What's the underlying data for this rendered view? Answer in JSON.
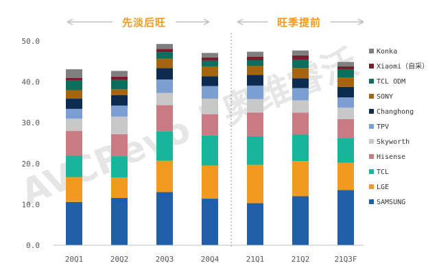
{
  "chart_data": {
    "type": "bar",
    "stacked": true,
    "categories": [
      "20Q1",
      "20Q2",
      "20Q3",
      "20Q4",
      "21Q1",
      "21Q2",
      "21Q3F"
    ],
    "ylim": [
      0,
      50
    ],
    "yticks": [
      "0.0",
      "10.0",
      "20.0",
      "30.0",
      "40.0",
      "50.0"
    ],
    "grid": false,
    "legend_position": "right",
    "phase_labels": [
      {
        "label": "先淡后旺",
        "categories": [
          "20Q1",
          "20Q2",
          "20Q3",
          "20Q4"
        ]
      },
      {
        "label": "旺季提前",
        "categories": [
          "21Q1",
          "21Q2",
          "21Q3F"
        ]
      }
    ],
    "divider_after": "20Q4",
    "watermark": "AVCRevo | 奥维睿沃",
    "series": [
      {
        "name": "SAMSUNG",
        "color": "#1f5fa8",
        "values": [
          10.6,
          11.6,
          13.0,
          11.4,
          10.3,
          12.0,
          13.5
        ]
      },
      {
        "name": "LGE",
        "color": "#f29a1f",
        "values": [
          6.1,
          5.0,
          7.7,
          8.1,
          9.4,
          8.6,
          6.7
        ]
      },
      {
        "name": "TCL",
        "color": "#17b59a",
        "values": [
          5.2,
          5.2,
          7.2,
          7.4,
          7.0,
          6.5,
          6.1
        ]
      },
      {
        "name": "Hisense",
        "color": "#c97a83",
        "values": [
          6.1,
          5.4,
          6.4,
          5.2,
          5.8,
          5.4,
          4.6
        ]
      },
      {
        "name": "Skyworth",
        "color": "#c8c8c8",
        "values": [
          3.0,
          4.3,
          3.0,
          3.8,
          3.3,
          3.0,
          2.8
        ]
      },
      {
        "name": "TPV",
        "color": "#7c9fd3",
        "values": [
          2.4,
          2.7,
          3.3,
          3.1,
          3.3,
          3.0,
          2.5
        ]
      },
      {
        "name": "Changhong",
        "color": "#0d2b4f",
        "values": [
          2.5,
          2.6,
          2.8,
          2.4,
          2.6,
          2.4,
          2.6
        ]
      },
      {
        "name": "SONY",
        "color": "#a6640f",
        "values": [
          2.1,
          1.4,
          2.3,
          2.4,
          2.2,
          2.5,
          2.3
        ]
      },
      {
        "name": "TCL ODM",
        "color": "#0a6e5c",
        "values": [
          2.3,
          2.3,
          1.6,
          1.4,
          1.4,
          2.0,
          1.9
        ]
      },
      {
        "name": "Xiaomi（自采）",
        "color": "#7a1d2d",
        "values": [
          0.7,
          0.8,
          0.8,
          0.8,
          0.9,
          1.1,
          0.8
        ]
      },
      {
        "name": "Konka",
        "color": "#7f7f7f",
        "values": [
          2.1,
          1.4,
          1.2,
          1.1,
          1.2,
          1.2,
          1.1
        ]
      }
    ]
  }
}
